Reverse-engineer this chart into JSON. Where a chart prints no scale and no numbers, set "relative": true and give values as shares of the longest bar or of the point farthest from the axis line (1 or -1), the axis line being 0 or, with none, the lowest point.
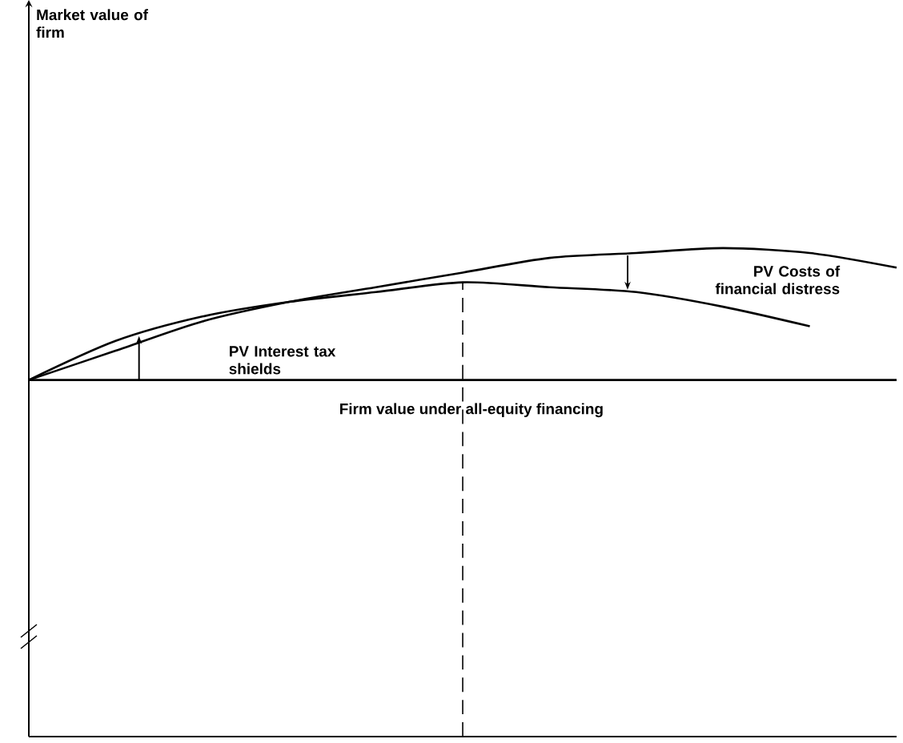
{
  "chart_data": {
    "type": "line",
    "relative": true,
    "categories": [
      null,
      null,
      null,
      null,
      null,
      null,
      null,
      null,
      null,
      null,
      null
    ],
    "series": [
      {
        "color": "#000000",
        "values": [
          0.73,
          0.79,
          0.85,
          0.89,
          0.92,
          0.95,
          0.98,
          0.99,
          1,
          0.99,
          0.96
        ]
      },
      {
        "color": "#000000",
        "values": [
          0.73,
          0.81,
          0.86,
          0.89,
          0.91,
          0.93,
          0.92,
          0.91,
          0.88,
          0.84,
          null
        ]
      }
    ],
    "ref_lines": [
      {
        "axis": "y",
        "value": 0.73,
        "label": "Firm value under all-equity financing",
        "color": "#000000"
      }
    ],
    "annotations": [
      "Market value of firm",
      "PV Interest tax shields",
      "PV Costs of financial distress"
    ],
    "marker": "none",
    "line_style": "solid"
  }
}
